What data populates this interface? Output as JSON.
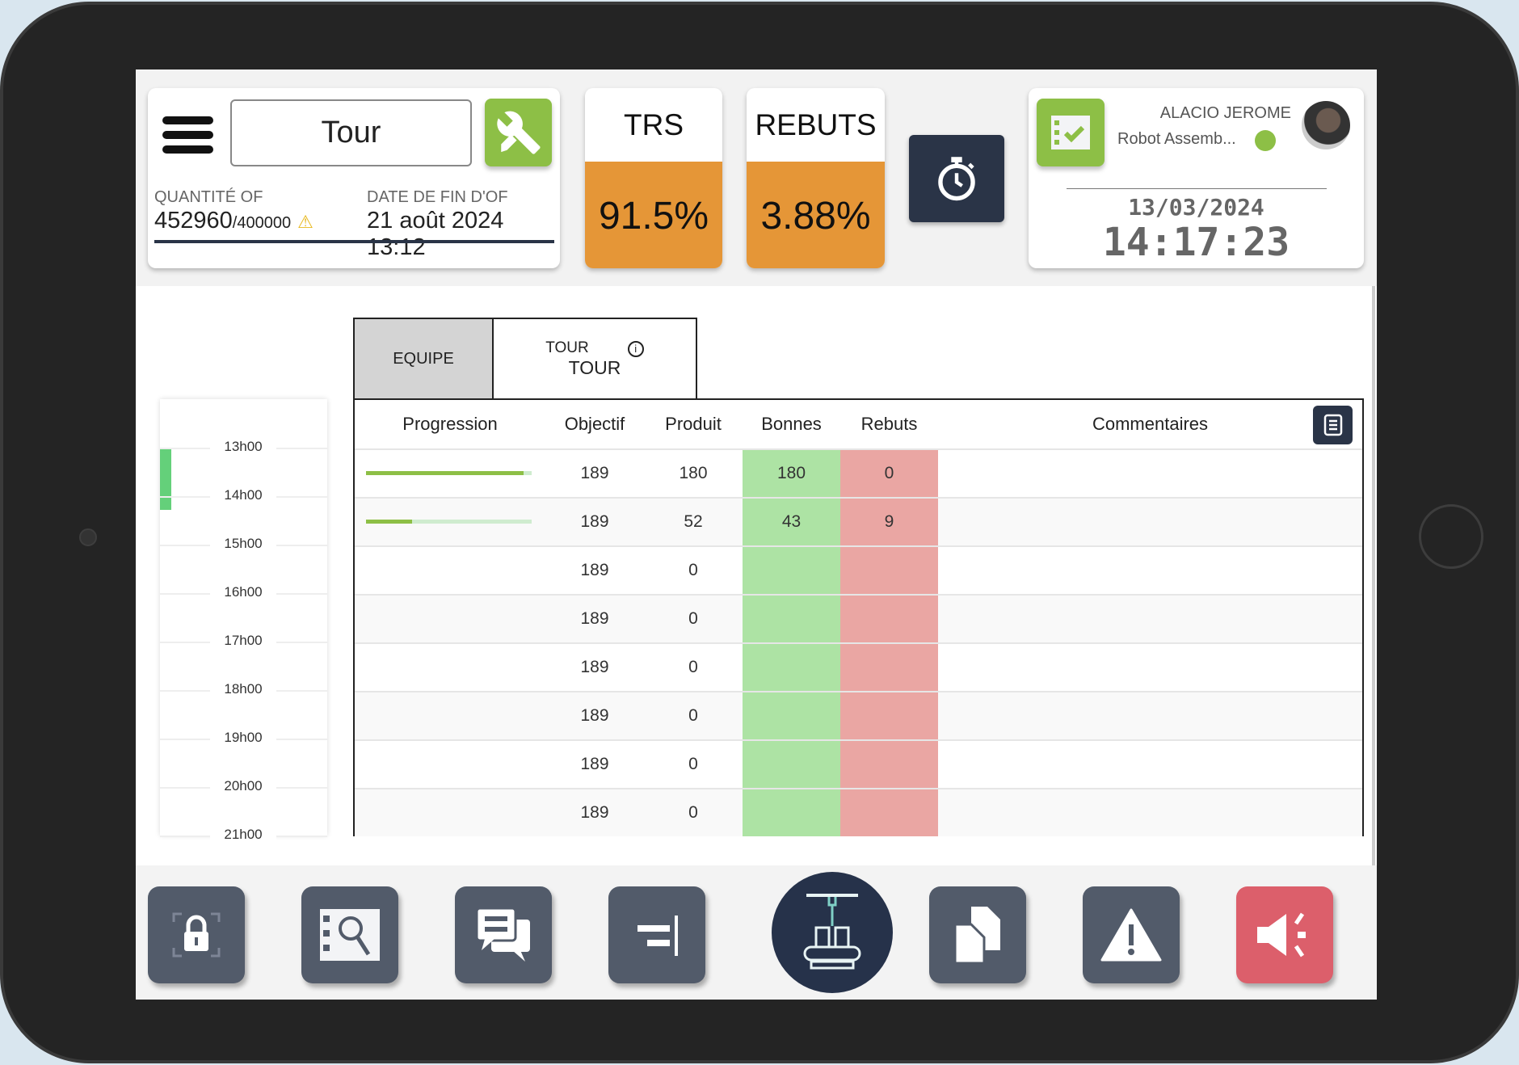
{
  "header": {
    "machine": "Tour",
    "qty_label": "QUANTITÉ OF",
    "qty_value": "452960",
    "qty_target": "/400000",
    "date_label": "DATE DE FIN D'OF",
    "date_value": "21 août 2024 13:12"
  },
  "kpis": [
    {
      "title": "TRS",
      "value": "91.5%"
    },
    {
      "title": "REBUTS",
      "value": "3.88%"
    }
  ],
  "user": {
    "name": "ALACIO JEROME",
    "station": "Robot Assemb...",
    "status_color": "#8dbf46",
    "date": "13/03/2024",
    "time": "14:17:23"
  },
  "timeline": {
    "hours": [
      "13h00",
      "14h00",
      "15h00",
      "16h00",
      "17h00",
      "18h00",
      "19h00",
      "20h00",
      "21h00"
    ]
  },
  "tabs": {
    "equipe": "EQUIPE",
    "tour_top": "TOUR",
    "tour_bottom": "TOUR"
  },
  "table": {
    "headers": {
      "progression": "Progression",
      "objectif": "Objectif",
      "produit": "Produit",
      "bonnes": "Bonnes",
      "rebuts": "Rebuts",
      "commentaires": "Commentaires"
    },
    "rows": [
      {
        "progress": 0.95,
        "objectif": "189",
        "produit": "180",
        "bonnes": "180",
        "rebuts": "0"
      },
      {
        "progress": 0.28,
        "objectif": "189",
        "produit": "52",
        "bonnes": "43",
        "rebuts": "9"
      },
      {
        "progress": 0,
        "objectif": "189",
        "produit": "0",
        "bonnes": "",
        "rebuts": ""
      },
      {
        "progress": 0,
        "objectif": "189",
        "produit": "0",
        "bonnes": "",
        "rebuts": ""
      },
      {
        "progress": 0,
        "objectif": "189",
        "produit": "0",
        "bonnes": "",
        "rebuts": ""
      },
      {
        "progress": 0,
        "objectif": "189",
        "produit": "0",
        "bonnes": "",
        "rebuts": ""
      },
      {
        "progress": 0,
        "objectif": "189",
        "produit": "0",
        "bonnes": "",
        "rebuts": ""
      },
      {
        "progress": 0,
        "objectif": "189",
        "produit": "0",
        "bonnes": "",
        "rebuts": ""
      }
    ]
  },
  "toolbar": [
    "lock-icon",
    "checklist-search-icon",
    "chat-icon",
    "align-right-icon",
    "production-line-icon",
    "documents-icon",
    "warning-icon",
    "megaphone-icon"
  ],
  "colors": {
    "accent_green": "#8dbf46",
    "kpi_orange": "#e59637",
    "navy": "#2a3447",
    "alert_red": "#dc5f6b"
  }
}
